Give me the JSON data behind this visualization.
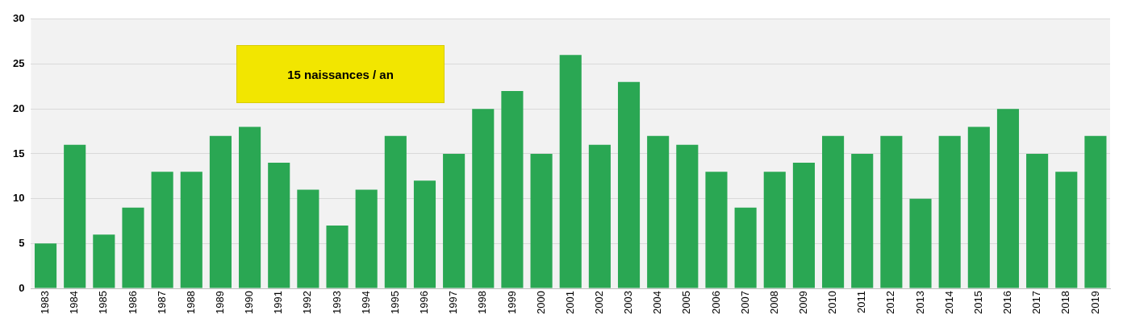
{
  "chart_data": {
    "type": "bar",
    "categories": [
      "1983",
      "1984",
      "1985",
      "1986",
      "1987",
      "1988",
      "1989",
      "1990",
      "1991",
      "1992",
      "1993",
      "1994",
      "1995",
      "1996",
      "1997",
      "1998",
      "1999",
      "2000",
      "2001",
      "2002",
      "2003",
      "2004",
      "2005",
      "2006",
      "2007",
      "2008",
      "2009",
      "2010",
      "2011",
      "2012",
      "2013",
      "2014",
      "2015",
      "2016",
      "2017",
      "2018",
      "2019"
    ],
    "values": [
      5,
      16,
      6,
      9,
      13,
      13,
      17,
      18,
      14,
      11,
      7,
      11,
      17,
      12,
      15,
      20,
      22,
      15,
      26,
      16,
      23,
      17,
      16,
      13,
      9,
      13,
      14,
      17,
      15,
      17,
      10,
      17,
      18,
      20,
      15,
      13,
      17
    ],
    "color": "#2aa753",
    "ylim": [
      0,
      30
    ],
    "yticks": [
      0,
      5,
      10,
      15,
      20,
      25,
      30
    ],
    "grid": "y",
    "annotations": [
      "15 naissances / an"
    ]
  }
}
